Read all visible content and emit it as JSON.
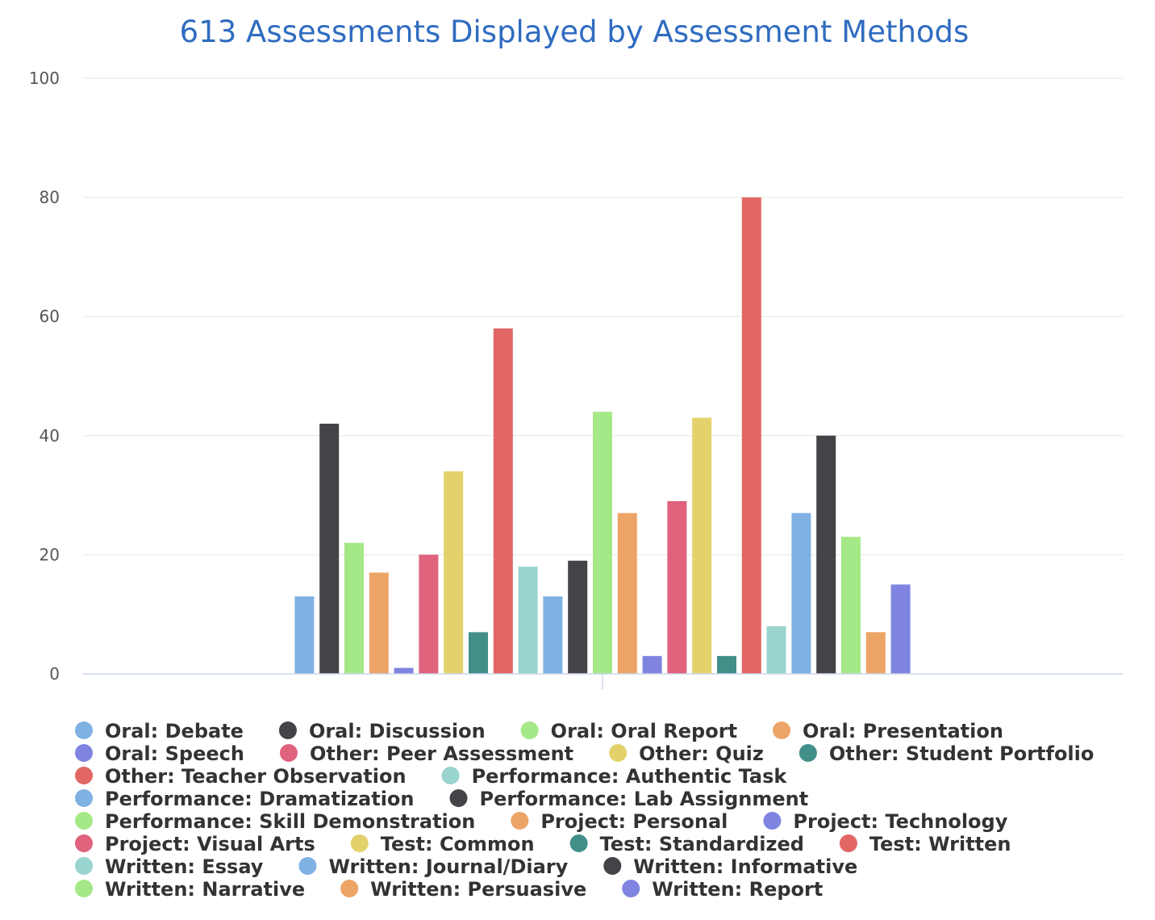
{
  "chart_data": {
    "type": "bar",
    "title": "613 Assessments Displayed by Assessment Methods",
    "xlabel": "",
    "ylabel": "",
    "ylim": [
      0,
      100
    ],
    "yticks": [
      "0",
      "20",
      "40",
      "60",
      "80",
      "100"
    ],
    "grid": true,
    "legend_position": "bottom",
    "series": [
      {
        "name": "Oral: Debate",
        "value": 13,
        "color": "#7fb1e3"
      },
      {
        "name": "Oral: Discussion",
        "value": 42,
        "color": "#434348"
      },
      {
        "name": "Oral: Oral Report",
        "value": 22,
        "color": "#a5e887"
      },
      {
        "name": "Oral: Presentation",
        "value": 17,
        "color": "#eda467"
      },
      {
        "name": "Oral: Speech",
        "value": 1,
        "color": "#7f84e0"
      },
      {
        "name": "Other: Peer Assessment",
        "value": 20,
        "color": "#e0627c"
      },
      {
        "name": "Other: Quiz",
        "value": 34,
        "color": "#e3d26b"
      },
      {
        "name": "Other: Student Portfolio",
        "value": 7,
        "color": "#428f89"
      },
      {
        "name": "Other: Teacher Observation",
        "value": 58,
        "color": "#e26664"
      },
      {
        "name": "Performance: Authentic Task",
        "value": 18,
        "color": "#99d4ce"
      },
      {
        "name": "Performance: Dramatization",
        "value": 13,
        "color": "#7fb1e3"
      },
      {
        "name": "Performance: Lab Assignment",
        "value": 19,
        "color": "#434348"
      },
      {
        "name": "Performance: Skill Demonstration",
        "value": 44,
        "color": "#a5e887"
      },
      {
        "name": "Project: Personal",
        "value": 27,
        "color": "#eda467"
      },
      {
        "name": "Project: Technology",
        "value": 3,
        "color": "#7f84e0"
      },
      {
        "name": "Project: Visual Arts",
        "value": 29,
        "color": "#e0627c"
      },
      {
        "name": "Test: Common",
        "value": 43,
        "color": "#e3d26b"
      },
      {
        "name": "Test: Standardized",
        "value": 3,
        "color": "#428f89"
      },
      {
        "name": "Test: Written",
        "value": 80,
        "color": "#e26664"
      },
      {
        "name": "Written: Essay",
        "value": 8,
        "color": "#99d4ce"
      },
      {
        "name": "Written: Journal/Diary",
        "value": 27,
        "color": "#7fb1e3"
      },
      {
        "name": "Written: Informative",
        "value": 40,
        "color": "#434348"
      },
      {
        "name": "Written: Narrative",
        "value": 23,
        "color": "#a5e887"
      },
      {
        "name": "Written: Persuasive",
        "value": 7,
        "color": "#eda467"
      },
      {
        "name": "Written: Report",
        "value": 15,
        "color": "#7f84e0"
      }
    ]
  }
}
